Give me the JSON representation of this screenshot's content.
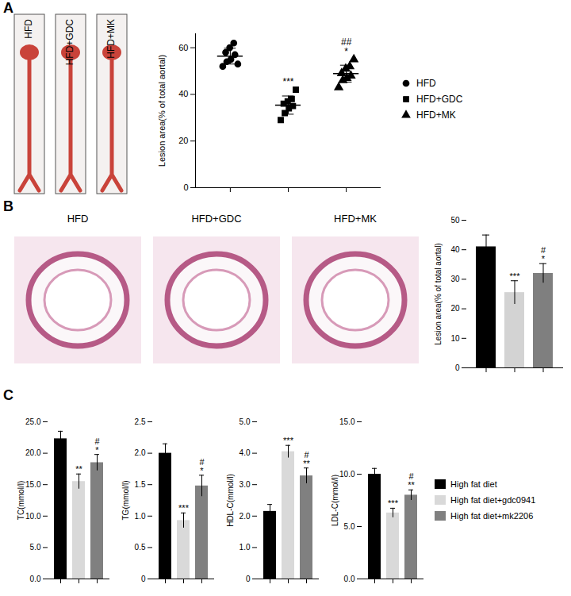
{
  "chart_data": [
    {
      "panel": "A",
      "type": "scatter",
      "image_labels": [
        "HFD",
        "HFD+GDC",
        "HFD+MK"
      ],
      "y_label": "Lesion area(% of total aortal)",
      "series": [
        {
          "name": "HFD",
          "marker": "circle",
          "color": "#000000",
          "values": [
            52,
            54,
            55,
            57,
            58,
            60,
            62,
            53
          ],
          "mean": 56.4,
          "error": 3.4
        },
        {
          "name": "HFD+GDC",
          "marker": "square",
          "color": "#000000",
          "values": [
            29,
            32,
            34,
            35,
            36,
            37,
            38,
            42
          ],
          "mean": 35.4,
          "error": 3.9,
          "annotations": [
            "***"
          ]
        },
        {
          "name": "HFD+MK",
          "marker": "triangle",
          "color": "#000000",
          "values": [
            43,
            46,
            47,
            48,
            49,
            51,
            52,
            55
          ],
          "mean": 48.9,
          "error": 3.6,
          "annotations": [
            "##",
            "*"
          ]
        }
      ],
      "ylim": [
        0,
        66
      ],
      "yticks": [
        0,
        20,
        40,
        60
      ],
      "tick_labels": "y",
      "legend": "right"
    },
    {
      "panel": "B",
      "type": "bar",
      "image_labels": [
        "HFD",
        "HFD+GDC",
        "HFD+MK"
      ],
      "y_label": "Lesion area(% of total aortal)",
      "categories": [
        null,
        null,
        null
      ],
      "values": [
        41,
        25.5,
        32
      ],
      "error": [
        4,
        4,
        3.3
      ],
      "annotations": [
        null,
        [
          "***"
        ],
        [
          "#",
          "*"
        ]
      ],
      "colors": [
        "#000000",
        "#d3d3d3",
        "#7f7f7f"
      ],
      "ylim": [
        0,
        50
      ],
      "yticks": [
        0,
        10,
        20,
        30,
        40,
        50
      ],
      "tick_labels": "y"
    },
    {
      "panel": "C",
      "type": "bar",
      "y_label": "TC(mmol/l)",
      "categories": [
        null,
        null,
        null
      ],
      "values": [
        22.3,
        15.5,
        18.5
      ],
      "error": [
        1.2,
        1.2,
        1.3
      ],
      "annotations": [
        null,
        [
          "**"
        ],
        [
          "#",
          "*"
        ]
      ],
      "colors": [
        "#000000",
        "#d9d9d9",
        "#808080"
      ],
      "ylim": [
        0,
        25
      ],
      "yticks": [
        {
          "value": 0,
          "label": "0.0"
        },
        {
          "value": 5,
          "label": "5.0"
        },
        {
          "value": 10,
          "label": "10.0"
        },
        {
          "value": 15,
          "label": "15.0"
        },
        {
          "value": 20,
          "label": "20.0"
        },
        {
          "value": 25,
          "label": "25.0"
        }
      ],
      "tick_labels": "y"
    },
    {
      "type": "bar",
      "y_label": "TG(mmol/l)",
      "categories": [
        null,
        null,
        null
      ],
      "values": [
        2.0,
        0.93,
        1.48
      ],
      "error": [
        0.15,
        0.12,
        0.17
      ],
      "annotations": [
        null,
        [
          "***"
        ],
        [
          "#",
          "*"
        ]
      ],
      "colors": [
        "#000000",
        "#d9d9d9",
        "#808080"
      ],
      "ylim": [
        0,
        2.5
      ],
      "yticks": [
        0,
        0.5,
        {
          "value": 1,
          "label": "1.0"
        },
        1.5,
        {
          "value": 2,
          "label": "2.0"
        },
        2.5
      ],
      "tick_labels": "y"
    },
    {
      "type": "bar",
      "y_label": "HDL-C(mmol/l)",
      "categories": [
        null,
        null,
        null
      ],
      "values": [
        2.15,
        4.05,
        3.28
      ],
      "error": [
        0.22,
        0.2,
        0.25
      ],
      "annotations": [
        null,
        [
          "***"
        ],
        [
          "#",
          "**"
        ]
      ],
      "colors": [
        "#000000",
        "#d9d9d9",
        "#808080"
      ],
      "ylim": [
        0,
        5
      ],
      "yticks": [
        0,
        {
          "value": 1,
          "label": "1.0"
        },
        {
          "value": 2,
          "label": "2.0"
        },
        {
          "value": 3,
          "label": "3.0"
        },
        {
          "value": 4,
          "label": "4.0"
        },
        {
          "value": 5,
          "label": "5.0"
        }
      ],
      "tick_labels": "y"
    },
    {
      "type": "bar",
      "y_label": "LDL-C(mmol/l)",
      "categories": [
        "High fat diet",
        "High fat diet+gdc0941",
        "High fat diet+mk2206"
      ],
      "values": [
        10.0,
        6.3,
        8.0
      ],
      "error": [
        0.55,
        0.45,
        0.5
      ],
      "annotations": [
        null,
        [
          "***"
        ],
        [
          "#",
          "**"
        ]
      ],
      "colors": [
        "#000000",
        "#d9d9d9",
        "#808080"
      ],
      "ylim": [
        0,
        15
      ],
      "yticks": [
        {
          "value": 0,
          "label": "0.0"
        },
        {
          "value": 5,
          "label": "5.0"
        },
        {
          "value": 10,
          "label": "10.0"
        },
        {
          "value": 15,
          "label": "15.0"
        }
      ],
      "tick_labels": "y",
      "legend": "right"
    }
  ]
}
